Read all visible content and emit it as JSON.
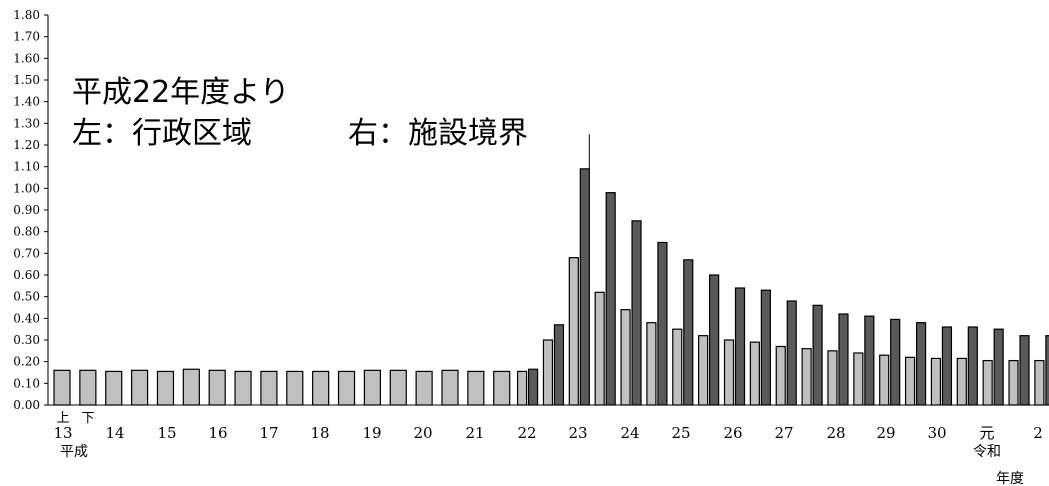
{
  "annotations": {
    "line1": "平成22年度より",
    "line2_left": "左：行政区域",
    "line2_right": "右：施設境界"
  },
  "chart_data": {
    "type": "bar",
    "title": "",
    "xlabel": "年度",
    "ylabel": "",
    "ylim": [
      0,
      1.8
    ],
    "y_ticks": [
      "0.00",
      "0.10",
      "0.20",
      "0.30",
      "0.40",
      "0.50",
      "0.60",
      "0.70",
      "0.80",
      "0.90",
      "1.00",
      "1.10",
      "1.20",
      "1.30",
      "1.40",
      "1.50",
      "1.60",
      "1.70",
      "1.80"
    ],
    "x_tick_labels": [
      "13",
      "14",
      "15",
      "16",
      "17",
      "18",
      "19",
      "20",
      "21",
      "22",
      "23",
      "24",
      "25",
      "26",
      "27",
      "28",
      "29",
      "30",
      "元",
      "2"
    ],
    "half_labels": [
      "上",
      "下"
    ],
    "era_labels": [
      {
        "text": "平成",
        "under": "13"
      },
      {
        "text": "令和",
        "under": "元"
      }
    ],
    "colors": {
      "administrative": "#c0c0c0",
      "facility": "#5a5a5a",
      "edge": "#000000"
    },
    "series": [
      {
        "values": [
          0.16,
          0.16,
          0.155,
          0.16,
          0.155,
          0.165,
          0.16,
          0.155,
          0.155,
          0.155,
          0.155,
          0.155,
          0.16,
          0.16,
          0.155,
          0.16,
          0.155,
          0.155,
          0.155,
          0.3,
          0.68,
          0.52,
          0.44,
          0.38,
          0.35,
          0.32,
          0.3,
          0.29,
          0.27,
          0.26,
          0.25,
          0.24,
          0.23,
          0.22,
          0.215,
          0.215,
          0.205,
          0.205,
          0.205
        ]
      },
      {
        "values": [
          null,
          null,
          null,
          null,
          null,
          null,
          null,
          null,
          null,
          null,
          null,
          null,
          null,
          null,
          null,
          null,
          null,
          null,
          0.165,
          0.37,
          1.09,
          0.98,
          0.85,
          0.75,
          0.67,
          0.6,
          0.54,
          0.53,
          0.48,
          0.46,
          0.42,
          0.41,
          0.395,
          0.38,
          0.36,
          0.36,
          0.35,
          0.32,
          0.32
        ]
      }
    ],
    "peak_line_value": 1.25
  }
}
